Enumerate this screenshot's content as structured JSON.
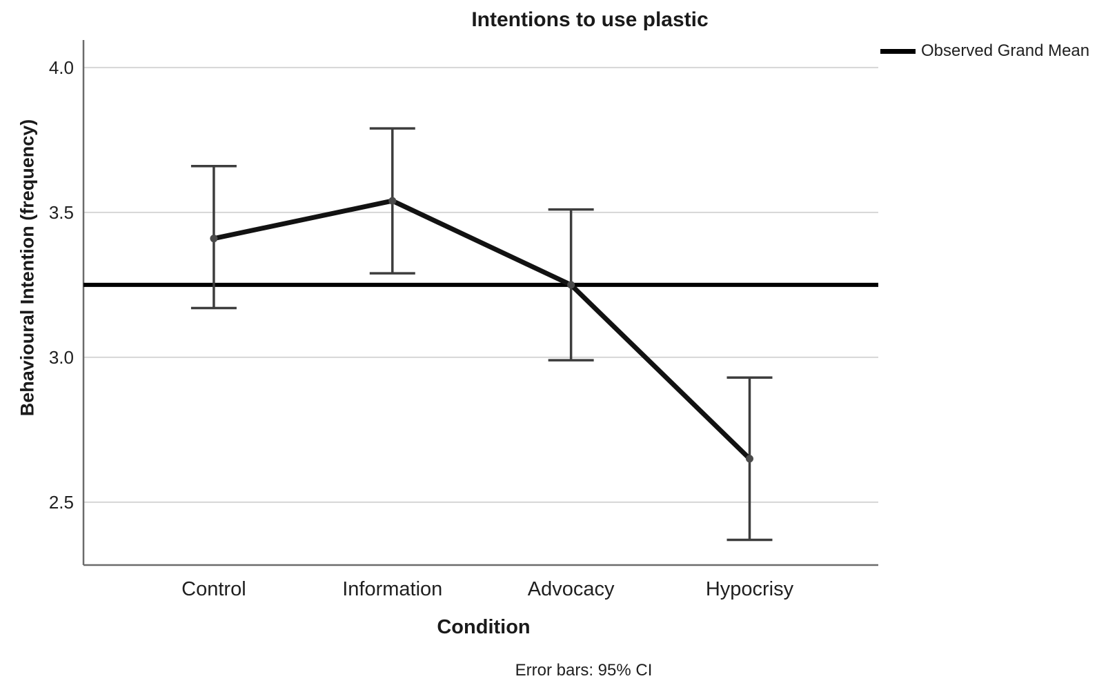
{
  "chart_data": {
    "type": "line",
    "title": "Intentions to use plastic",
    "xlabel": "Condition",
    "ylabel": "Behavioural Intention (frequency)",
    "footnote": "Error bars: 95% CI",
    "legend": {
      "position": "top-right",
      "entries": [
        {
          "label": "Observed Grand Mean",
          "swatch": "thick-black-line"
        }
      ]
    },
    "categories": [
      "Control",
      "Information",
      "Advocacy",
      "Hypocrisy"
    ],
    "series": [
      {
        "values": [
          3.41,
          3.54,
          3.25,
          2.65
        ],
        "ci_low": [
          3.17,
          3.29,
          2.99,
          2.37
        ],
        "ci_high": [
          3.66,
          3.79,
          3.51,
          2.93
        ]
      }
    ],
    "reference_lines": [
      {
        "label": "Observed Grand Mean",
        "value": 3.25
      }
    ],
    "yticks": [
      4.0,
      3.5,
      3.0,
      2.5
    ],
    "ytick_labels": [
      "4.0",
      "3.5",
      "3.0",
      "2.5"
    ],
    "ylim": [
      2.283,
      4.095
    ],
    "grid": true,
    "error_bars": "95% CI",
    "colors": {
      "series": "#121212",
      "marker": "#4a4a4a",
      "error": "#3d3d3d",
      "grid": "#d6d6d6",
      "axis": "#6b6b6b",
      "reference": "#000000",
      "text": "#1f1f1f"
    }
  }
}
